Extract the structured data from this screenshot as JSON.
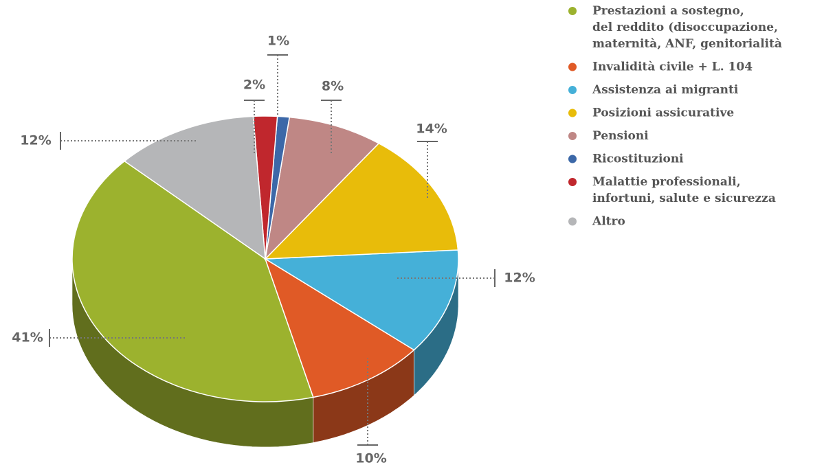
{
  "chart_data": {
    "type": "pie",
    "categories": [
      "Prestazioni a sostegno,\ndel reddito (disoccupazione,\nmaternità, ANF, genitorialità",
      "Invalidità civile + L. 104",
      "Assistenza ai migranti",
      "Posizioni assicurative",
      "Pensioni",
      "Ricostituzioni",
      "Malattie professionali,\ninfortuni, salute e sicurezza",
      "Altro"
    ],
    "values": [
      41,
      10,
      12,
      14,
      8,
      1,
      2,
      12
    ],
    "value_labels": [
      "41%",
      "10%",
      "12%",
      "14%",
      "8%",
      "1%",
      "2%",
      "12%"
    ],
    "colors": [
      "#9cb22e",
      "#e05a26",
      "#45b0d8",
      "#e8bc0a",
      "#bf8785",
      "#3c68a8",
      "#c0272d",
      "#b5b6b8"
    ]
  }
}
